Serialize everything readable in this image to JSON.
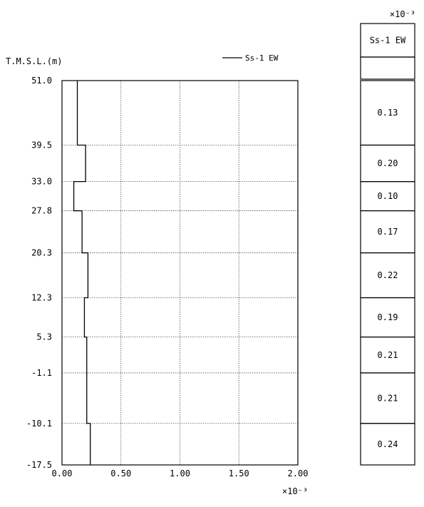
{
  "chart_data": {
    "type": "line",
    "step": true,
    "ylabel": "T.M.S.L.(m)",
    "x_multiplier": "×10⁻³",
    "xlim": [
      0.0,
      2.0
    ],
    "xticks": [
      "0.00",
      "0.50",
      "1.00",
      "1.50",
      "2.00"
    ],
    "xtick_values": [
      0.0,
      0.5,
      1.0,
      1.5,
      2.0
    ],
    "ylim": [
      -17.5,
      51.0
    ],
    "yticks": [
      "51.0",
      "39.5",
      "33.0",
      "27.8",
      "20.3",
      "12.3",
      "5.3",
      "-1.1",
      "-10.1",
      "-17.5"
    ],
    "ytick_values": [
      51.0,
      39.5,
      33.0,
      27.8,
      20.3,
      12.3,
      5.3,
      -1.1,
      -10.1,
      -17.5
    ],
    "grid": true,
    "legend_position": "top-right",
    "series": [
      {
        "name": "Ss-1 EW",
        "color": "#000000",
        "segments": [
          {
            "top": 51.0,
            "bottom": 39.5,
            "value": 0.13
          },
          {
            "top": 39.5,
            "bottom": 33.0,
            "value": 0.2
          },
          {
            "top": 33.0,
            "bottom": 27.8,
            "value": 0.1
          },
          {
            "top": 27.8,
            "bottom": 20.3,
            "value": 0.17
          },
          {
            "top": 20.3,
            "bottom": 12.3,
            "value": 0.22
          },
          {
            "top": 12.3,
            "bottom": 5.3,
            "value": 0.19
          },
          {
            "top": 5.3,
            "bottom": -1.1,
            "value": 0.21
          },
          {
            "top": -1.1,
            "bottom": -10.1,
            "value": 0.21
          },
          {
            "top": -10.1,
            "bottom": -17.5,
            "value": 0.24
          }
        ]
      }
    ]
  },
  "table": {
    "multiplier": "×10⁻³",
    "header": "Ss-1 EW",
    "values": [
      "0.13",
      "0.20",
      "0.10",
      "0.17",
      "0.22",
      "0.19",
      "0.21",
      "0.21",
      "0.24"
    ]
  }
}
